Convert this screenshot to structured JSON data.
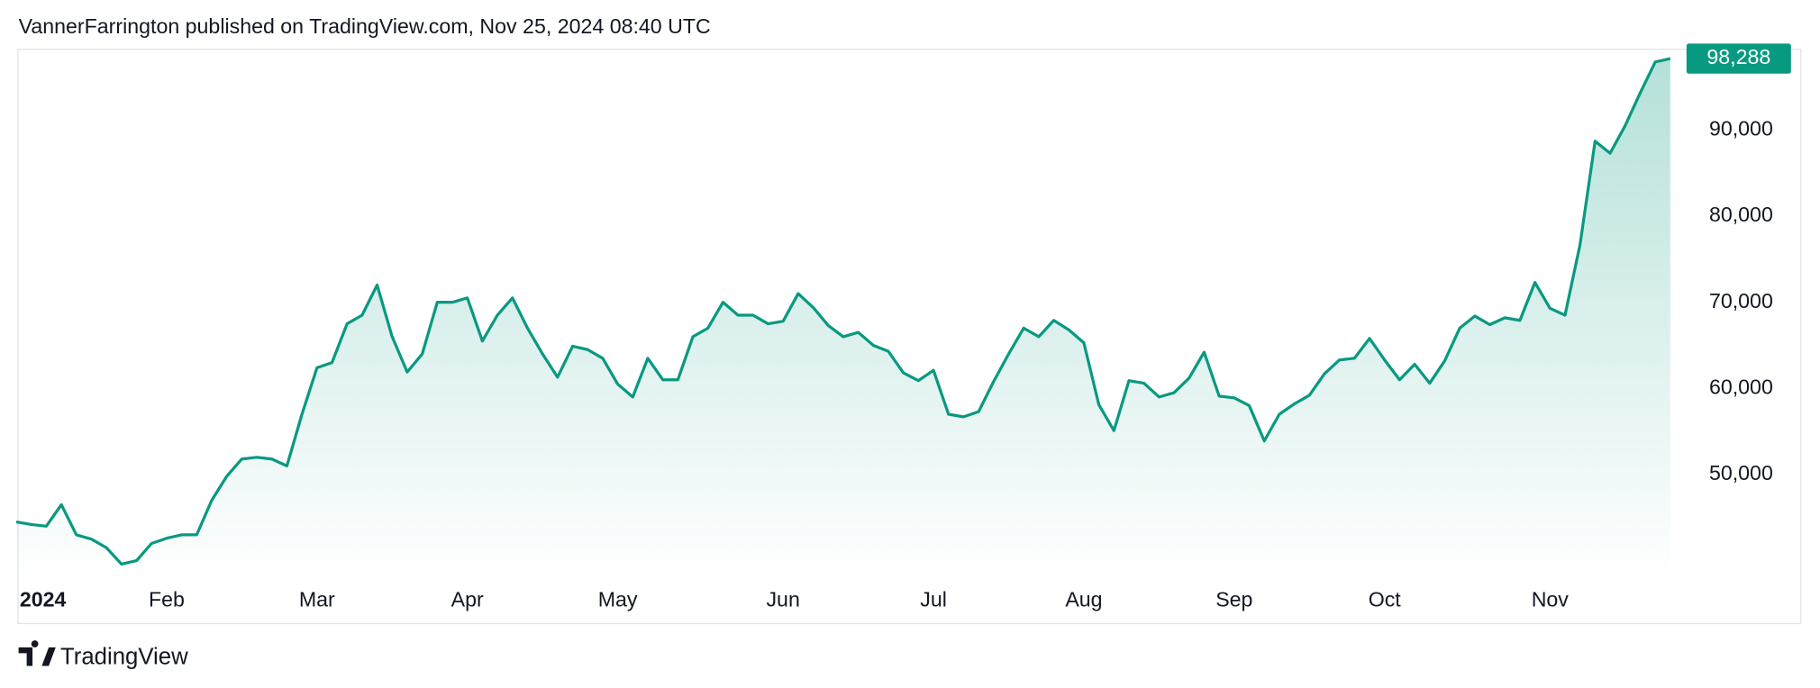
{
  "header": "VannerFarrington published on TradingView.com, Nov 25, 2024 08:40 UTC",
  "footer": "TradingView",
  "chart_data": {
    "type": "line",
    "color": "#089981",
    "categories": [
      "2024",
      null,
      null,
      null,
      null,
      null,
      null,
      null,
      null,
      null,
      "Feb",
      null,
      null,
      null,
      null,
      null,
      null,
      null,
      null,
      null,
      "Mar",
      null,
      null,
      null,
      null,
      null,
      null,
      null,
      null,
      null,
      "Apr",
      null,
      null,
      null,
      null,
      null,
      null,
      null,
      null,
      null,
      "May",
      null,
      null,
      null,
      null,
      null,
      null,
      null,
      null,
      null,
      null,
      "Jun",
      null,
      null,
      null,
      null,
      null,
      null,
      null,
      null,
      null,
      "Jul",
      null,
      null,
      null,
      null,
      null,
      null,
      null,
      null,
      null,
      "Aug",
      null,
      null,
      null,
      null,
      null,
      null,
      null,
      null,
      null,
      "Sep",
      null,
      null,
      null,
      null,
      null,
      null,
      null,
      null,
      null,
      "Oct",
      null,
      null,
      null,
      null,
      null,
      null,
      null,
      null,
      null,
      null,
      "Nov",
      null,
      null,
      null,
      null,
      null,
      null,
      null,
      null
    ],
    "values": [
      44500,
      44200,
      44000,
      46500,
      43000,
      42500,
      41500,
      39600,
      40000,
      42000,
      42600,
      43000,
      43000,
      47000,
      49800,
      51800,
      52000,
      51800,
      51000,
      57000,
      62400,
      63000,
      67500,
      68500,
      72000,
      66000,
      61900,
      64000,
      70000,
      70000,
      70500,
      65500,
      68500,
      70500,
      67000,
      64000,
      61300,
      64900,
      64500,
      63500,
      60500,
      59000,
      63500,
      61000,
      61000,
      66000,
      67000,
      70000,
      68500,
      68500,
      67500,
      67800,
      71000,
      69400,
      67300,
      66000,
      66500,
      65000,
      64300,
      61800,
      60900,
      62100,
      57000,
      56700,
      57300,
      60800,
      64000,
      67000,
      66000,
      67900,
      66800,
      65300,
      58100,
      55100,
      60900,
      60600,
      59000,
      59500,
      61200,
      64200,
      59100,
      58900,
      58000,
      53900,
      57000,
      58200,
      59200,
      61700,
      63300,
      63500,
      65800,
      63300,
      61000,
      62800,
      60600,
      63200,
      67000,
      68400,
      67400,
      68200,
      67900,
      72300,
      69300,
      68500,
      76700,
      88700,
      87300,
      90500,
      94300,
      97900,
      98288
    ],
    "price_label": "98,288",
    "ylim": [
      38150,
      99430
    ],
    "yticks": [
      {
        "value": 50000,
        "label": "50,000"
      },
      {
        "value": 60000,
        "label": "60,000"
      },
      {
        "value": 70000,
        "label": "70,000"
      },
      {
        "value": 80000,
        "label": "80,000"
      },
      {
        "value": 90000,
        "label": "90,000"
      }
    ]
  }
}
